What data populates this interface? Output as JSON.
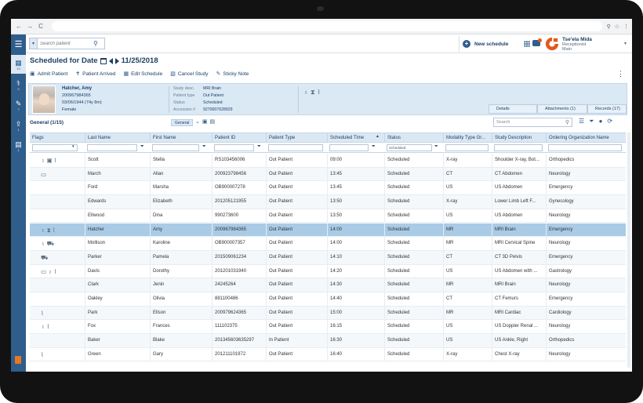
{
  "browser": {
    "nav": [
      "←",
      "→",
      "C"
    ],
    "icons": [
      "⚲",
      "☆",
      "⋮"
    ]
  },
  "header": {
    "search_placeholder": "Search patient",
    "new_schedule_label": "New schedule",
    "user": {
      "name": "Tse'ela Mida",
      "role": "Receptionist",
      "site": "Main"
    },
    "accent_color": "#2f5d8c",
    "logo_color": "#e05a1c"
  },
  "left_nav": {
    "items": [
      {
        "icon": "schedule-icon",
        "count": "15"
      },
      {
        "icon": "patient-icon",
        "count": "3"
      },
      {
        "icon": "worklist-icon",
        "count": "7"
      },
      {
        "icon": "upload-icon",
        "count": "1"
      },
      {
        "icon": "reports-icon",
        "count": "1"
      }
    ]
  },
  "page": {
    "title": "Scheduled for Date",
    "date": "11/25/2018"
  },
  "toolbar": {
    "items": [
      "Admit Patient",
      "Patient Arrived",
      "Edit Schedule",
      "Cancel Study",
      "Sticky Note"
    ]
  },
  "patient": {
    "name": "Hatcher, Amy",
    "id": "200967984365",
    "dob": "03/06/1944 (74y 8m)",
    "sex": "Female",
    "study_desc_label": "Study desc.",
    "study_desc": "MRI Brain",
    "patient_type_label": "Patient type",
    "patient_type": "Out Patient",
    "status_label": "Status",
    "status": "Scheduled",
    "accession_label": "Accession #",
    "accession": "9270007628929",
    "tabs": [
      "Details",
      "Attachments (1)",
      "Records (17)"
    ]
  },
  "grid": {
    "title": "General (1/15)",
    "filter_tag": "General",
    "search_placeholder": "Search",
    "status_filter": "Scheduled",
    "columns": [
      "Flags",
      "Last Name",
      "First Name",
      "Patient ID",
      "Patient Type",
      "Scheduled Time",
      "Status",
      "Modality Type Gr...",
      "Study Description",
      "Ordering Organization Name"
    ],
    "rows": [
      {
        "flags": [
          "stethoscope",
          "badge",
          "clip"
        ],
        "last": "Scott",
        "first": "Stella",
        "pid": "RS103456006",
        "ptype": "Out Patient",
        "time": "09:00",
        "status": "Scheduled",
        "modality": "X-ray",
        "study": "Shoulder X-ray, Bot...",
        "org": "Orthopedics"
      },
      {
        "flags": [
          "monitor"
        ],
        "last": "March",
        "first": "Allan",
        "pid": "200923798456",
        "ptype": "Out Patient",
        "time": "13:45",
        "status": "Scheduled",
        "modality": "CT",
        "study": "CT Abdomen",
        "org": "Neurology"
      },
      {
        "flags": [],
        "last": "Ford",
        "first": "Marsha",
        "pid": "OB900007278",
        "ptype": "Out Patient",
        "time": "13:45",
        "status": "Scheduled",
        "modality": "US",
        "study": "US Abdomen",
        "org": "Emergency"
      },
      {
        "flags": [],
        "last": "Edwards",
        "first": "Elizabeth",
        "pid": "201205121955",
        "ptype": "Out Patient",
        "time": "13:50",
        "status": "Scheduled",
        "modality": "X-ray",
        "study": "Lower Limb Left F...",
        "org": "Gynecology"
      },
      {
        "flags": [],
        "last": "Ellwood",
        "first": "Dina",
        "pid": "990273600",
        "ptype": "Out Patient",
        "time": "13:50",
        "status": "Scheduled",
        "modality": "US",
        "study": "US Abdomen",
        "org": "Neurology"
      },
      {
        "flags": [
          "stethoscope",
          "hourglass",
          "clip"
        ],
        "last": "Hatcher",
        "first": "Amy",
        "pid": "200967984365",
        "ptype": "Out Patient",
        "time": "14:00",
        "status": "Scheduled",
        "modality": "MR",
        "study": "MRI Brain",
        "org": "Emergency",
        "selected": true
      },
      {
        "flags": [
          "stethoscope",
          "car"
        ],
        "last": "Mollison",
        "first": "Karoline",
        "pid": "OB900007357",
        "ptype": "Out Patient",
        "time": "14:00",
        "status": "Scheduled",
        "modality": "MR",
        "study": "MRI Cervical Spine",
        "org": "Neurology"
      },
      {
        "flags": [
          "car"
        ],
        "last": "Parker",
        "first": "Pamela",
        "pid": "201509061234",
        "ptype": "Out Patient",
        "time": "14:10",
        "status": "Scheduled",
        "modality": "CT",
        "study": "CT 3D Pelvis",
        "org": "Emergency"
      },
      {
        "flags": [
          "monitor",
          "stethoscope",
          "clip"
        ],
        "last": "Davis",
        "first": "Dorothy",
        "pid": "201201031940",
        "ptype": "Out Patient",
        "time": "14:20",
        "status": "Scheduled",
        "modality": "US",
        "study": "US Abdomen with ...",
        "org": "Gastrology"
      },
      {
        "flags": [],
        "last": "Clark",
        "first": "Jenin",
        "pid": "24245264",
        "ptype": "Out Patient",
        "time": "14:30",
        "status": "Scheduled",
        "modality": "MR",
        "study": "MRI Brain",
        "org": "Neurology"
      },
      {
        "flags": [],
        "last": "Oakley",
        "first": "Olivia",
        "pid": "881100486",
        "ptype": "Out Patient",
        "time": "14:40",
        "status": "Scheduled",
        "modality": "CT",
        "study": "CT Femurs",
        "org": "Emergency"
      },
      {
        "flags": [
          "clip"
        ],
        "last": "Park",
        "first": "Ellson",
        "pid": "200979624365",
        "ptype": "Out Patient",
        "time": "15:00",
        "status": "Scheduled",
        "modality": "MR",
        "study": "MRI Cardiac",
        "org": "Cardiology"
      },
      {
        "flags": [
          "stethoscope",
          "clip"
        ],
        "last": "Fox",
        "first": "Frances",
        "pid": "111102375",
        "ptype": "Out Patient",
        "time": "16:15",
        "status": "Scheduled",
        "modality": "US",
        "study": "US Doppler Renal ...",
        "org": "Neurology"
      },
      {
        "flags": [],
        "last": "Baker",
        "first": "Blake",
        "pid": "201345603635297",
        "ptype": "In Patient",
        "time": "16:30",
        "status": "Scheduled",
        "modality": "US",
        "study": "US Ankle, Right",
        "org": "Orthopedics"
      },
      {
        "flags": [
          "clip"
        ],
        "last": "Green",
        "first": "Gary",
        "pid": "201211101972",
        "ptype": "Out Patient",
        "time": "16:40",
        "status": "Scheduled",
        "modality": "X-ray",
        "study": "Chest X-ray",
        "org": "Neurology"
      }
    ]
  }
}
